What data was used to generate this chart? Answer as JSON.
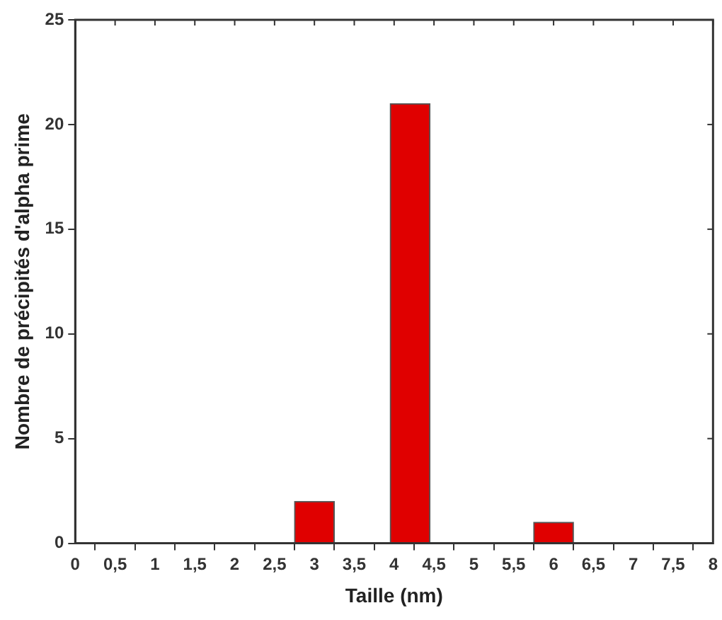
{
  "chart_data": {
    "type": "bar",
    "xlabel": "Taille (nm)",
    "ylabel": "Nombre de précipités d'alpha prime",
    "x": [
      3,
      4.2,
      6
    ],
    "values": [
      2,
      21,
      1
    ],
    "color": "#e00000",
    "xlim": [
      0,
      8
    ],
    "xticks": [
      0,
      {
        "value": 0.5,
        "label": "0,5"
      },
      1,
      {
        "value": 1.5,
        "label": "1,5"
      },
      2,
      {
        "value": 2.5,
        "label": "2,5"
      },
      3,
      {
        "value": 3.5,
        "label": "3,5"
      },
      4,
      {
        "value": 4.5,
        "label": "4,5"
      },
      5,
      {
        "value": 5.5,
        "label": "5,5"
      },
      6,
      {
        "value": 6.5,
        "label": "6,5"
      },
      7,
      {
        "value": 7.5,
        "label": "7,5"
      },
      8
    ],
    "ylim": [
      0,
      25
    ],
    "yticks": [
      0,
      5,
      10,
      15,
      20,
      25
    ],
    "grid": false,
    "legend": false
  }
}
